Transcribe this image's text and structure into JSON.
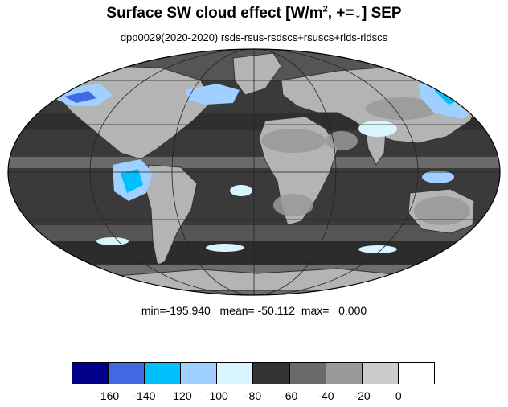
{
  "title": {
    "main": "Surface SW cloud effect [W/m",
    "sup": "2",
    "rest": ", +=↓]  SEP"
  },
  "subtitle": "dpp0029(2020-2020)  rsds-rsus-rsdscs+rsuscs+rlds-rldscs",
  "stats": "min=-195.940   mean= -50.112  max=   0.000",
  "colorbar": {
    "colors": [
      "#00008b",
      "#4169e1",
      "#00bfff",
      "#a0d0ff",
      "#d8f4ff",
      "#333333",
      "#696969",
      "#999999",
      "#cccccc",
      "#ffffff"
    ],
    "labels": [
      "-160",
      "-140",
      "-120",
      "-100",
      "-80",
      "-60",
      "-40",
      "-20",
      "0"
    ]
  },
  "map": {
    "projection": "mollweide",
    "ocean_color": "#3a3a3a",
    "land_color": "#b4b4b4",
    "coast_color": "#333333",
    "grid_color": "#222222"
  }
}
